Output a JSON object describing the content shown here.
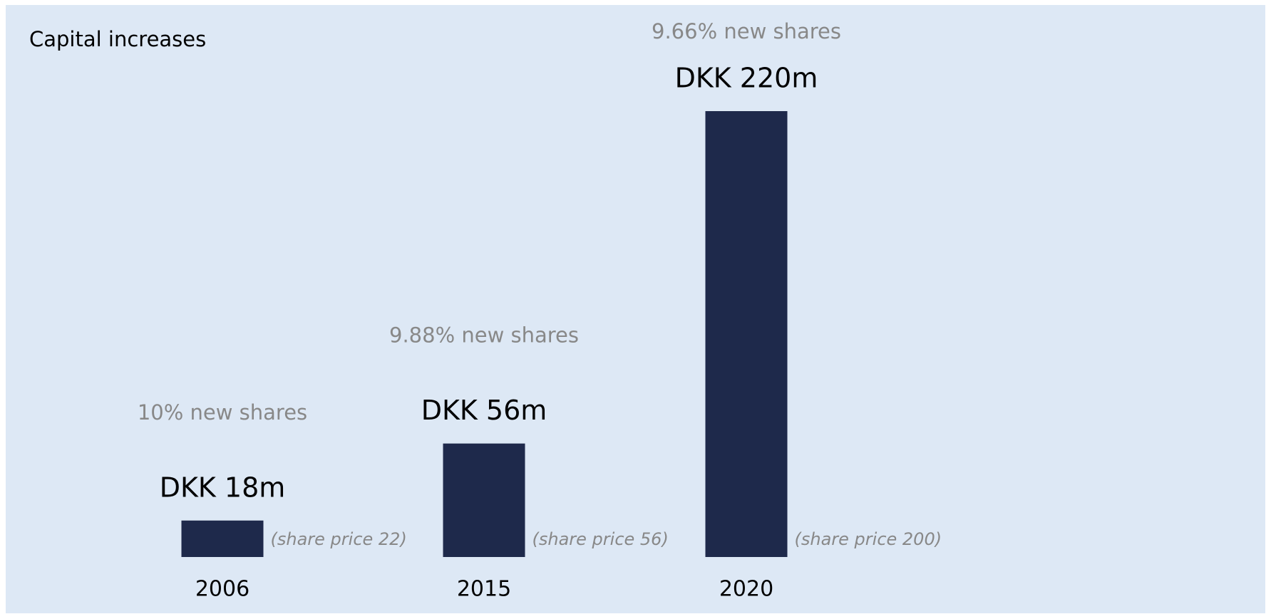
{
  "chart_data": {
    "type": "bar",
    "title": "Capital increases",
    "categories": [
      "2006",
      "2015",
      "2020"
    ],
    "values": [
      18,
      56,
      220
    ],
    "value_labels": [
      "DKK 18m",
      "DKK 56m",
      "DKK 220m"
    ],
    "color": "#1e294b",
    "annotations": {
      "new_shares": [
        "10% new shares",
        "9.88% new shares",
        "9.66% new shares"
      ],
      "share_price": [
        "(share price 22)",
        "(share price 56)",
        "(share price 200)"
      ]
    }
  }
}
